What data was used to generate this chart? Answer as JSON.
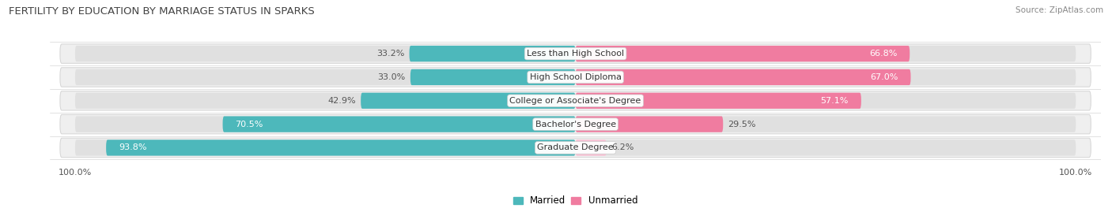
{
  "title": "FERTILITY BY EDUCATION BY MARRIAGE STATUS IN SPARKS",
  "source": "Source: ZipAtlas.com",
  "categories": [
    "Less than High School",
    "High School Diploma",
    "College or Associate's Degree",
    "Bachelor's Degree",
    "Graduate Degree"
  ],
  "married": [
    33.2,
    33.0,
    42.9,
    70.5,
    93.8
  ],
  "unmarried": [
    66.8,
    67.0,
    57.1,
    29.5,
    6.2
  ],
  "married_color": "#4db8bb",
  "unmarried_color": "#f07ca0",
  "unmarried_light_color": "#f9c0d4",
  "bar_bg_color": "#e0e0e0",
  "row_bg_color": "#efefef",
  "row_bg_edge_color": "#d8d8d8",
  "title_fontsize": 9.5,
  "label_fontsize": 8,
  "tick_fontsize": 8,
  "legend_fontsize": 8.5,
  "fig_bg_color": "#ffffff"
}
